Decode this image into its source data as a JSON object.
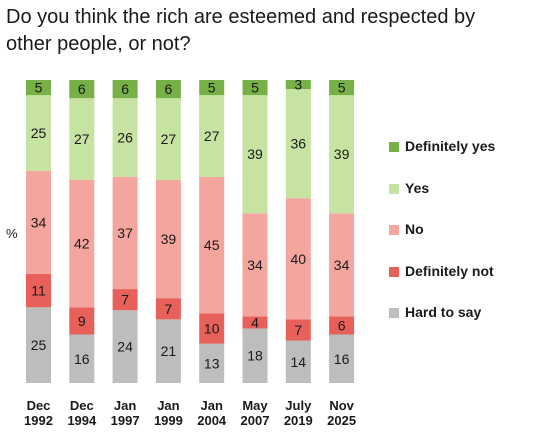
{
  "chart_data": {
    "type": "bar",
    "stacked": true,
    "title": "Do you think the rich are esteemed and respected by other people, or not?",
    "ylabel": "%",
    "categories": [
      [
        "Dec",
        "1992"
      ],
      [
        "Dec",
        "1994"
      ],
      [
        "Jan",
        "1997"
      ],
      [
        "Jan",
        "1999"
      ],
      [
        "Jan",
        "2004"
      ],
      [
        "May",
        "2007"
      ],
      [
        "July",
        "2019"
      ],
      [
        "Nov",
        "2025"
      ]
    ],
    "series": [
      {
        "name": "Hard to say",
        "color": "#bdbdbd",
        "values": [
          25,
          16,
          24,
          21,
          13,
          18,
          14,
          16
        ]
      },
      {
        "name": "Definitely not",
        "color": "#e8605a",
        "values": [
          11,
          9,
          7,
          7,
          10,
          4,
          7,
          6
        ]
      },
      {
        "name": "No",
        "color": "#f4a59e",
        "values": [
          34,
          42,
          37,
          39,
          45,
          34,
          40,
          34
        ]
      },
      {
        "name": "Yes",
        "color": "#c6e3a2",
        "values": [
          25,
          27,
          26,
          27,
          27,
          39,
          36,
          39
        ]
      },
      {
        "name": "Definitely yes",
        "color": "#76b046",
        "values": [
          5,
          6,
          6,
          6,
          5,
          5,
          3,
          5
        ]
      }
    ],
    "legend_order": [
      "Definitely yes",
      "Yes",
      "No",
      "Definitely not",
      "Hard to say"
    ],
    "legend_position": "right",
    "grid": false
  }
}
